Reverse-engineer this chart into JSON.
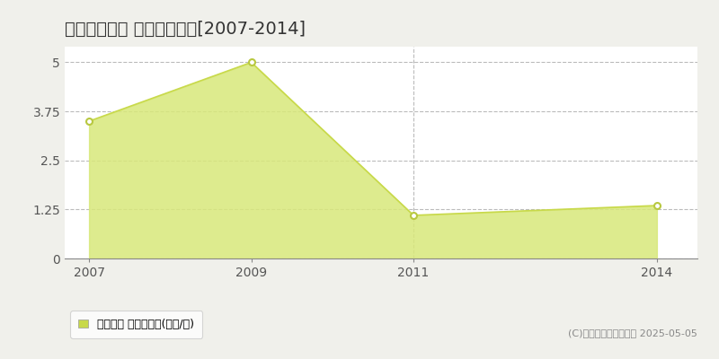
{
  "title": "下野市中大領 土地価格推移[2007-2014]",
  "years": [
    2007,
    2009,
    2011,
    2014
  ],
  "values": [
    3.5,
    5.0,
    1.1,
    1.35
  ],
  "line_color": "#c8d94a",
  "fill_color": "#d8e87a",
  "fill_alpha": 0.85,
  "marker_color": "white",
  "marker_edge_color": "#b8c840",
  "ylim": [
    0,
    5.4
  ],
  "yticks": [
    0,
    1.25,
    2.5,
    3.75,
    5
  ],
  "ytick_labels": [
    "0",
    "1.25",
    "2.5",
    "3.75",
    "5"
  ],
  "xticks": [
    2007,
    2009,
    2011,
    2014
  ],
  "xlim": [
    2006.7,
    2014.5
  ],
  "legend_label": "土地価格 平均坪単価(万円/坪)",
  "legend_marker_color": "#c8d94a",
  "copyright": "(C)土地価格ドットコム 2025-05-05",
  "bg_color": "#f0f0eb",
  "plot_bg_color": "#ffffff",
  "title_fontsize": 14,
  "label_fontsize": 10,
  "grid_color": "#bbbbbb",
  "vgrid_years": [
    2011
  ],
  "vgrid_color": "#bbbbbb"
}
